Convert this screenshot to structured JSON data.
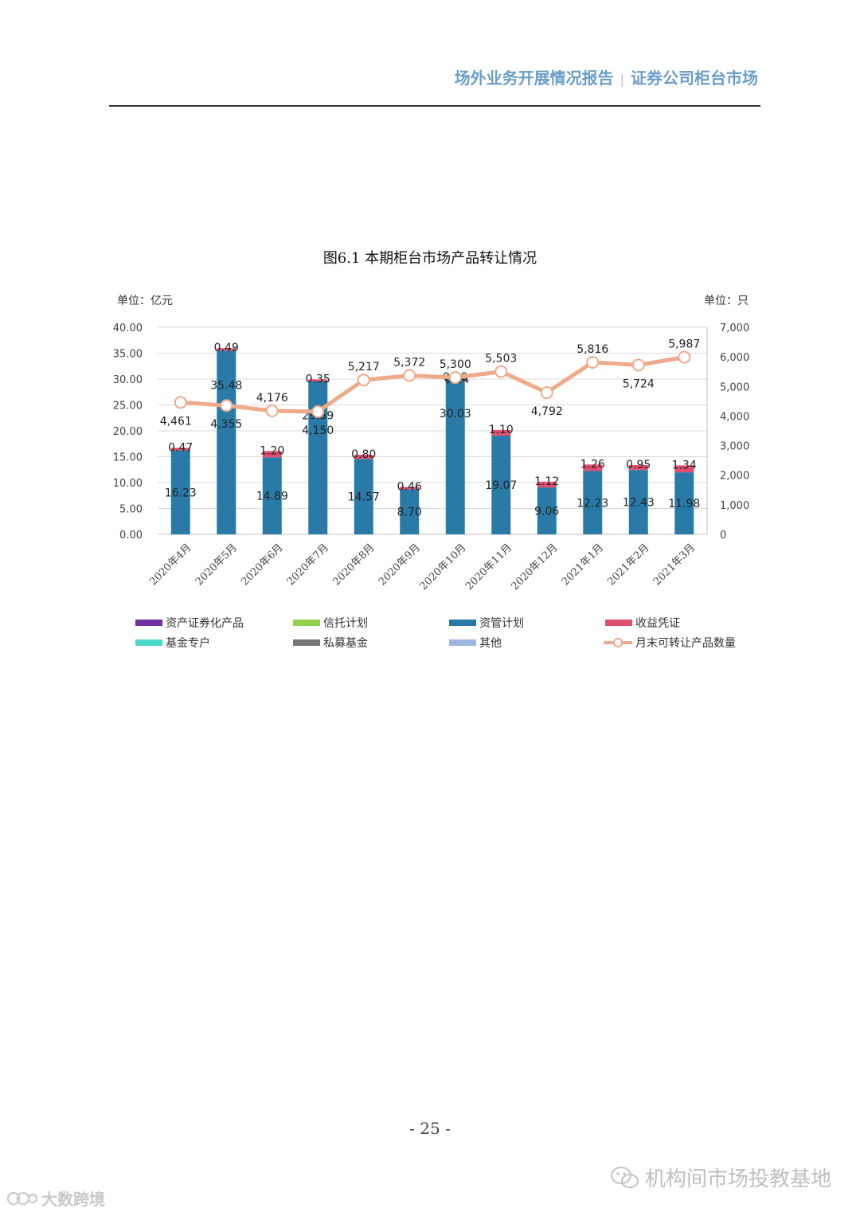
{
  "header": {
    "left_text": "场外业务开展情况报告",
    "separator": "|",
    "right_text": "证券公司柜台市场"
  },
  "page_number": "- 25 -",
  "watermarks": {
    "right_text": "机构间市场投教基地",
    "left_text": "大数跨境",
    "right_icon": "wechat-icon",
    "left_icon": "logo-icon"
  },
  "chart_data": {
    "type": "bar",
    "title": "图6.1 本期柜台市场产品转让情况",
    "left_axis_unit": "单位：亿元",
    "right_axis_unit": "单位：只",
    "ylim": [
      0,
      40
    ],
    "y2lim": [
      0,
      7000
    ],
    "y_ticks": [
      "0.00",
      "5.00",
      "10.00",
      "15.00",
      "20.00",
      "25.00",
      "30.00",
      "35.00",
      "40.00"
    ],
    "y2_ticks": [
      "0",
      "1,000",
      "2,000",
      "3,000",
      "4,000",
      "5,000",
      "6,000",
      "7,000"
    ],
    "categories": [
      "2020年4月",
      "2020年5月",
      "2020年6月",
      "2020年7月",
      "2020年8月",
      "2020年9月",
      "2020年10月",
      "2020年11月",
      "2020年12月",
      "2021年1月",
      "2021年2月",
      "2021年3月"
    ],
    "grid": true,
    "legend_position": "bottom",
    "series": [
      {
        "name": "资产证券化产品",
        "kind": "bar",
        "color": "#7030a0",
        "values": [
          0,
          0,
          0,
          0,
          0,
          0,
          0,
          0,
          0,
          0,
          0,
          0
        ]
      },
      {
        "name": "信托计划",
        "kind": "bar",
        "color": "#92d050",
        "values": [
          0,
          0,
          0,
          0,
          0,
          0,
          0,
          0,
          0,
          0,
          0,
          0
        ]
      },
      {
        "name": "资管计划",
        "kind": "bar",
        "color": "#2a7aa8",
        "values": [
          16.23,
          35.48,
          14.89,
          29.59,
          14.57,
          8.7,
          30.03,
          19.07,
          9.06,
          12.23,
          12.43,
          11.98
        ],
        "labels": [
          "16.23",
          "35.48",
          "14.89",
          "29.59",
          "14.57",
          "8.70",
          "30.03",
          "19.07",
          "9.06",
          "12.23",
          "12.43",
          "11.98"
        ]
      },
      {
        "name": "收益凭证",
        "kind": "bar",
        "color": "#e04f6d",
        "values": [
          0.47,
          0.49,
          1.2,
          0.35,
          0.8,
          0.46,
          0.3,
          1.1,
          1.12,
          1.26,
          0.95,
          1.34
        ],
        "labels": [
          "0.47",
          "0.49",
          "1.20",
          "0.35",
          "0.80",
          "0.46",
          "0.30",
          "1.10",
          "1.12",
          "1.26",
          "0.95",
          "1.34"
        ]
      },
      {
        "name": "基金专户",
        "kind": "bar",
        "color": "#4dd9c7",
        "values": [
          0,
          0,
          0,
          0,
          0,
          0,
          0.24,
          0,
          0,
          0,
          0,
          0
        ],
        "labels": [
          "",
          "",
          "",
          "",
          "",
          "",
          "0.24",
          "",
          "",
          "",
          "",
          ""
        ]
      },
      {
        "name": "私募基金",
        "kind": "bar",
        "color": "#777777",
        "values": [
          0,
          0,
          0,
          0,
          0,
          0,
          0,
          0,
          0,
          0,
          0,
          0
        ]
      },
      {
        "name": "其他",
        "kind": "bar",
        "color": "#9fb6e0",
        "values": [
          0,
          0,
          0,
          0,
          0,
          0,
          0,
          0,
          0,
          0,
          0,
          0
        ]
      },
      {
        "name": "月末可转让产品数量",
        "kind": "line",
        "axis": "right",
        "color": "#f0a98a",
        "values": [
          4461,
          4355,
          4176,
          4150,
          5217,
          5372,
          5300,
          5503,
          4792,
          5816,
          5724,
          5987
        ],
        "labels": [
          "4,461",
          "4,355",
          "4,176",
          "4,150",
          "5,217",
          "5,372",
          "5,300",
          "5,503",
          "4,792",
          "5,816",
          "5,724",
          "5,987"
        ]
      }
    ]
  }
}
